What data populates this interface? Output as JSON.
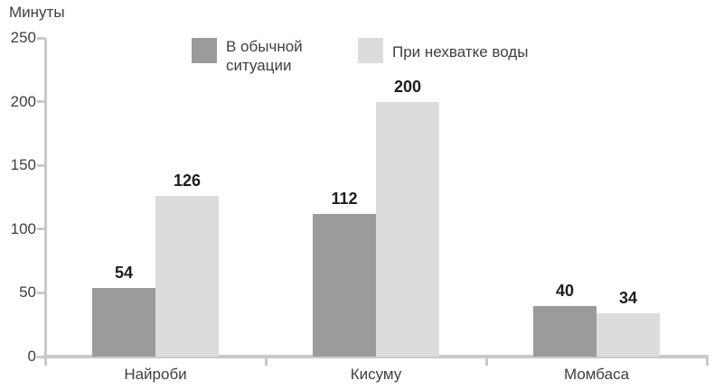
{
  "title": "Минуты",
  "chart_data": {
    "type": "bar",
    "title": "",
    "ylabel": "Минуты",
    "xlabel": "",
    "categories": [
      "Найроби",
      "Кисуму",
      "Момбаса"
    ],
    "series": [
      {
        "name": "В обычной ситуации",
        "color": "#9b9b9b",
        "values": [
          54,
          112,
          40
        ]
      },
      {
        "name": "При нехватке воды",
        "color": "#dcdcdc",
        "values": [
          126,
          200,
          34
        ]
      }
    ],
    "value_labels": [
      [
        54,
        112,
        40
      ],
      [
        126,
        200,
        34
      ]
    ],
    "ylim": [
      0,
      250
    ],
    "y_ticks": [
      0,
      50,
      100,
      150,
      200,
      250
    ],
    "grid": "off",
    "legend_position": "top",
    "axis_color": "#c9c9c9",
    "tick_label_color": "#3f3f3f",
    "value_label_color": "#1c1c1c"
  }
}
